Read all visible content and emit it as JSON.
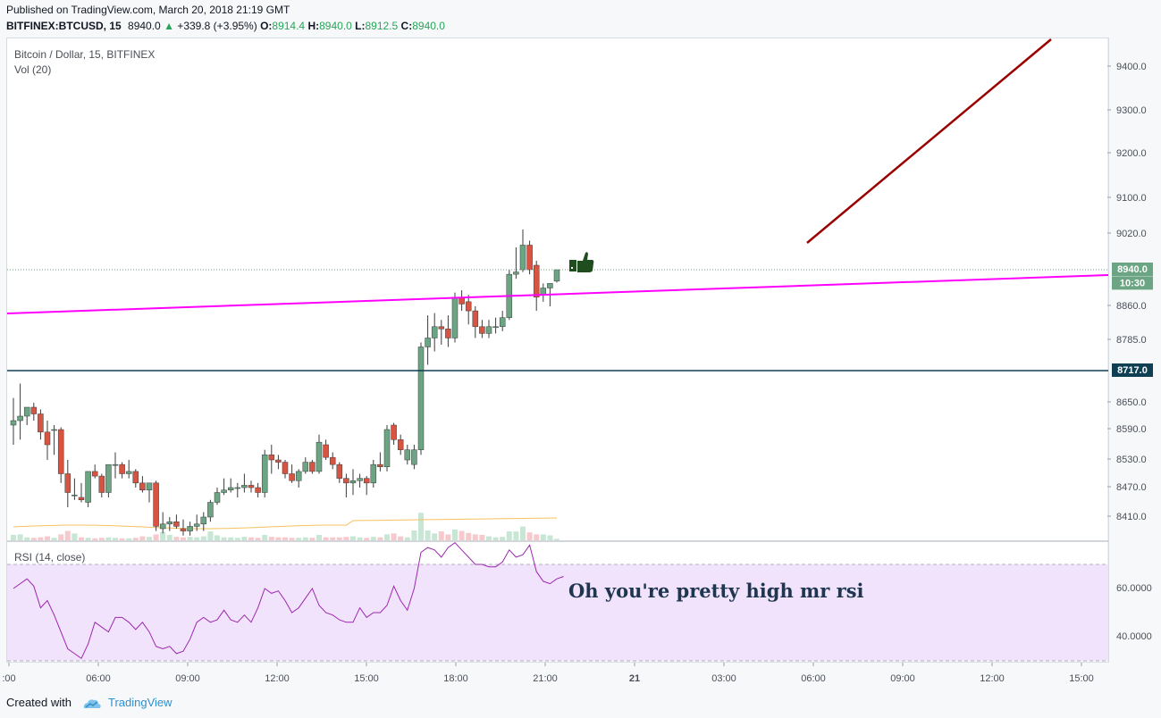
{
  "header": {
    "published": "Published on TradingView.com, March 20, 2018 21:19 GMT",
    "symbol": "BITFINEX:BTCUSD, 15",
    "last": "8940.0",
    "change": "+339.8 (+3.95%)",
    "o_label": "O:",
    "o_value": "8914.4",
    "h_label": "H:",
    "h_value": "8940.0",
    "l_label": "L:",
    "l_value": "8912.5",
    "c_label": "C:",
    "c_value": "8940.0"
  },
  "legend": {
    "title": "Bitcoin / Dollar, 15, BITFINEX",
    "vol": "Vol (20)",
    "rsi": "RSI (14, close)"
  },
  "annotation": "Oh you're pretty high mr rsi",
  "footer": {
    "created": "Created with",
    "brand": "TradingView"
  },
  "colors": {
    "up": "#53b987",
    "down": "#eb4d5c",
    "up_body": "#6ba583",
    "down_body": "#d75442",
    "trend": "#ff00ff",
    "arrow": "#9b0000",
    "level": "#0e3f52",
    "rsi_line": "#9c27b0",
    "rsi_band": "#f1e3fb"
  },
  "chart_data": [
    {
      "type": "candlestick",
      "title": "Bitcoin / Dollar, 15, BITFINEX",
      "y_ticks": [
        "9400.0",
        "9300.0",
        "9200.0",
        "9100.0",
        "9020.0",
        "8860.0",
        "8785.0",
        "8650.0",
        "8590.0",
        "8530.0",
        "8470.0",
        "8410.0"
      ],
      "y_tick_values": [
        9400,
        9300,
        9200,
        9100,
        9020,
        8860,
        8785,
        8650,
        8590,
        8530,
        8470,
        8410
      ],
      "price_labels": [
        {
          "text": "8940.0",
          "value": 8940,
          "color": "#6ba583"
        },
        {
          "text": "10:30",
          "value": 8910,
          "color": "#6ba583"
        },
        {
          "text": "8717.0",
          "value": 8717,
          "color": "#0e3f52"
        }
      ],
      "horizontal_level": 8717,
      "last_price": 8940,
      "candles": [
        {
          "o": 8600,
          "h": 8660,
          "l": 8560,
          "c": 8610,
          "v": 0.55
        },
        {
          "o": 8610,
          "h": 8690,
          "l": 8570,
          "c": 8620,
          "v": 0.6
        },
        {
          "o": 8620,
          "h": 8640,
          "l": 8600,
          "c": 8640,
          "v": 0.3
        },
        {
          "o": 8640,
          "h": 8650,
          "l": 8610,
          "c": 8625,
          "v": 0.25
        },
        {
          "o": 8625,
          "h": 8635,
          "l": 8570,
          "c": 8585,
          "v": 0.3
        },
        {
          "o": 8585,
          "h": 8610,
          "l": 8530,
          "c": 8560,
          "v": 0.4
        },
        {
          "o": 8590,
          "h": 8600,
          "l": 8540,
          "c": 8590,
          "v": 0.25
        },
        {
          "o": 8590,
          "h": 8595,
          "l": 8480,
          "c": 8500,
          "v": 0.6
        },
        {
          "o": 8500,
          "h": 8530,
          "l": 8430,
          "c": 8460,
          "v": 0.95
        },
        {
          "o": 8455,
          "h": 8490,
          "l": 8445,
          "c": 8455,
          "v": 0.7
        },
        {
          "o": 8450,
          "h": 8480,
          "l": 8440,
          "c": 8445,
          "v": 0.3
        },
        {
          "o": 8440,
          "h": 8500,
          "l": 8430,
          "c": 8505,
          "v": 0.25
        },
        {
          "o": 8505,
          "h": 8520,
          "l": 8490,
          "c": 8495,
          "v": 0.2
        },
        {
          "o": 8495,
          "h": 8500,
          "l": 8450,
          "c": 8460,
          "v": 0.25
        },
        {
          "o": 8460,
          "h": 8520,
          "l": 8450,
          "c": 8520,
          "v": 0.3
        },
        {
          "o": 8520,
          "h": 8545,
          "l": 8490,
          "c": 8520,
          "v": 0.25
        },
        {
          "o": 8520,
          "h": 8525,
          "l": 8490,
          "c": 8500,
          "v": 0.2
        },
        {
          "o": 8500,
          "h": 8530,
          "l": 8490,
          "c": 8505,
          "v": 0.2
        },
        {
          "o": 8505,
          "h": 8510,
          "l": 8470,
          "c": 8480,
          "v": 0.25
        },
        {
          "o": 8480,
          "h": 8495,
          "l": 8460,
          "c": 8465,
          "v": 0.4
        },
        {
          "o": 8465,
          "h": 8480,
          "l": 8440,
          "c": 8480,
          "v": 0.35
        },
        {
          "o": 8480,
          "h": 8485,
          "l": 8380,
          "c": 8390,
          "v": 0.6
        },
        {
          "o": 8385,
          "h": 8420,
          "l": 8375,
          "c": 8395,
          "v": 0.85
        },
        {
          "o": 8395,
          "h": 8410,
          "l": 8380,
          "c": 8400,
          "v": 0.55
        },
        {
          "o": 8400,
          "h": 8415,
          "l": 8385,
          "c": 8390,
          "v": 0.35
        },
        {
          "o": 8385,
          "h": 8405,
          "l": 8370,
          "c": 8380,
          "v": 0.3
        },
        {
          "o": 8380,
          "h": 8400,
          "l": 8370,
          "c": 8390,
          "v": 0.35
        },
        {
          "o": 8390,
          "h": 8415,
          "l": 8380,
          "c": 8395,
          "v": 0.3
        },
        {
          "o": 8395,
          "h": 8420,
          "l": 8380,
          "c": 8410,
          "v": 0.4
        },
        {
          "o": 8410,
          "h": 8445,
          "l": 8400,
          "c": 8440,
          "v": 0.9
        },
        {
          "o": 8440,
          "h": 8470,
          "l": 8435,
          "c": 8460,
          "v": 0.5
        },
        {
          "o": 8460,
          "h": 8490,
          "l": 8455,
          "c": 8465,
          "v": 0.3
        },
        {
          "o": 8465,
          "h": 8490,
          "l": 8460,
          "c": 8470,
          "v": 0.3
        },
        {
          "o": 8470,
          "h": 8480,
          "l": 8450,
          "c": 8470,
          "v": 0.25
        },
        {
          "o": 8470,
          "h": 8500,
          "l": 8460,
          "c": 8475,
          "v": 0.35
        },
        {
          "o": 8475,
          "h": 8485,
          "l": 8460,
          "c": 8470,
          "v": 0.3
        },
        {
          "o": 8470,
          "h": 8480,
          "l": 8450,
          "c": 8460,
          "v": 0.25
        },
        {
          "o": 8460,
          "h": 8550,
          "l": 8450,
          "c": 8540,
          "v": 0.55
        },
        {
          "o": 8540,
          "h": 8560,
          "l": 8500,
          "c": 8530,
          "v": 0.35
        },
        {
          "o": 8530,
          "h": 8540,
          "l": 8510,
          "c": 8525,
          "v": 0.3
        },
        {
          "o": 8525,
          "h": 8530,
          "l": 8490,
          "c": 8500,
          "v": 0.3
        },
        {
          "o": 8500,
          "h": 8520,
          "l": 8480,
          "c": 8485,
          "v": 0.25
        },
        {
          "o": 8485,
          "h": 8510,
          "l": 8470,
          "c": 8505,
          "v": 0.25
        },
        {
          "o": 8505,
          "h": 8535,
          "l": 8500,
          "c": 8525,
          "v": 0.3
        },
        {
          "o": 8525,
          "h": 8530,
          "l": 8500,
          "c": 8505,
          "v": 0.25
        },
        {
          "o": 8505,
          "h": 8580,
          "l": 8500,
          "c": 8565,
          "v": 0.55
        },
        {
          "o": 8560,
          "h": 8570,
          "l": 8530,
          "c": 8535,
          "v": 0.3
        },
        {
          "o": 8535,
          "h": 8545,
          "l": 8510,
          "c": 8520,
          "v": 0.3
        },
        {
          "o": 8520,
          "h": 8525,
          "l": 8480,
          "c": 8490,
          "v": 0.3
        },
        {
          "o": 8490,
          "h": 8500,
          "l": 8450,
          "c": 8480,
          "v": 0.35
        },
        {
          "o": 8480,
          "h": 8510,
          "l": 8455,
          "c": 8485,
          "v": 0.4
        },
        {
          "o": 8485,
          "h": 8500,
          "l": 8470,
          "c": 8490,
          "v": 0.3
        },
        {
          "o": 8490,
          "h": 8495,
          "l": 8455,
          "c": 8480,
          "v": 0.25
        },
        {
          "o": 8480,
          "h": 8530,
          "l": 8470,
          "c": 8520,
          "v": 0.35
        },
        {
          "o": 8520,
          "h": 8545,
          "l": 8505,
          "c": 8515,
          "v": 0.3
        },
        {
          "o": 8515,
          "h": 8600,
          "l": 8505,
          "c": 8590,
          "v": 0.6
        },
        {
          "o": 8600,
          "h": 8605,
          "l": 8560,
          "c": 8570,
          "v": 0.7
        },
        {
          "o": 8570,
          "h": 8580,
          "l": 8540,
          "c": 8550,
          "v": 0.4
        },
        {
          "o": 8530,
          "h": 8560,
          "l": 8520,
          "c": 8550,
          "v": 0.3
        },
        {
          "o": 8520,
          "h": 8560,
          "l": 8510,
          "c": 8550,
          "v": 1.0
        },
        {
          "o": 8550,
          "h": 8780,
          "l": 8540,
          "c": 8770,
          "v": 2.8
        },
        {
          "o": 8770,
          "h": 8840,
          "l": 8730,
          "c": 8790,
          "v": 1.0
        },
        {
          "o": 8790,
          "h": 8845,
          "l": 8760,
          "c": 8815,
          "v": 0.7
        },
        {
          "o": 8815,
          "h": 8830,
          "l": 8775,
          "c": 8810,
          "v": 0.9
        },
        {
          "o": 8810,
          "h": 8840,
          "l": 8770,
          "c": 8790,
          "v": 0.6
        },
        {
          "o": 8790,
          "h": 8890,
          "l": 8780,
          "c": 8880,
          "v": 1.1
        },
        {
          "o": 8880,
          "h": 8895,
          "l": 8850,
          "c": 8865,
          "v": 0.95
        },
        {
          "o": 8870,
          "h": 8885,
          "l": 8820,
          "c": 8850,
          "v": 0.75
        },
        {
          "o": 8850,
          "h": 8860,
          "l": 8790,
          "c": 8815,
          "v": 0.6
        },
        {
          "o": 8815,
          "h": 8830,
          "l": 8790,
          "c": 8800,
          "v": 0.55
        },
        {
          "o": 8800,
          "h": 8830,
          "l": 8790,
          "c": 8815,
          "v": 0.4
        },
        {
          "o": 8815,
          "h": 8835,
          "l": 8800,
          "c": 8815,
          "v": 0.3
        },
        {
          "o": 8815,
          "h": 8850,
          "l": 8805,
          "c": 8835,
          "v": 0.35
        },
        {
          "o": 8835,
          "h": 8940,
          "l": 8830,
          "c": 8930,
          "v": 0.9
        },
        {
          "o": 8930,
          "h": 8990,
          "l": 8920,
          "c": 8935,
          "v": 0.9
        },
        {
          "o": 8940,
          "h": 9030,
          "l": 8935,
          "c": 8995,
          "v": 1.4
        },
        {
          "o": 8995,
          "h": 9005,
          "l": 8930,
          "c": 8940,
          "v": 0.8
        },
        {
          "o": 8950,
          "h": 8960,
          "l": 8850,
          "c": 8880,
          "v": 0.6
        },
        {
          "o": 8885,
          "h": 8910,
          "l": 8870,
          "c": 8900,
          "v": 0.6
        },
        {
          "o": 8900,
          "h": 8910,
          "l": 8860,
          "c": 8910,
          "v": 0.5
        },
        {
          "o": 8915,
          "h": 8940,
          "l": 8912,
          "c": 8940,
          "v": 0.15
        }
      ]
    },
    {
      "type": "line",
      "title": "RSI (14, close)",
      "y_ticks": [
        "60.0000",
        "40.0000"
      ],
      "y_tick_values": [
        60,
        40
      ],
      "band": [
        30,
        70
      ],
      "values": [
        60,
        62,
        64,
        61,
        52,
        55,
        49,
        42,
        35,
        33,
        31,
        37,
        46,
        44,
        42,
        48,
        48,
        46,
        43,
        46,
        42,
        36,
        35,
        36,
        33,
        34,
        39,
        46,
        48,
        46,
        47,
        51,
        47,
        46,
        49,
        46,
        52,
        60,
        58,
        59,
        55,
        50,
        52,
        56,
        60,
        53,
        50,
        49,
        47,
        46,
        46,
        52,
        48,
        50,
        50,
        53,
        61,
        55,
        51,
        60,
        75,
        77,
        76,
        73,
        77,
        79,
        76,
        73,
        70,
        70,
        69,
        69,
        71,
        76,
        73,
        74,
        78,
        67,
        63,
        62,
        64,
        65
      ]
    },
    {
      "type": "bar",
      "title": "Vol (20)"
    }
  ],
  "x_axis": {
    "ticks": [
      ":00",
      "06:00",
      "09:00",
      "12:00",
      "15:00",
      "18:00",
      "21:00",
      "21",
      "03:00",
      "06:00",
      "09:00",
      "12:00",
      "15:00"
    ],
    "bold_index": 7
  }
}
